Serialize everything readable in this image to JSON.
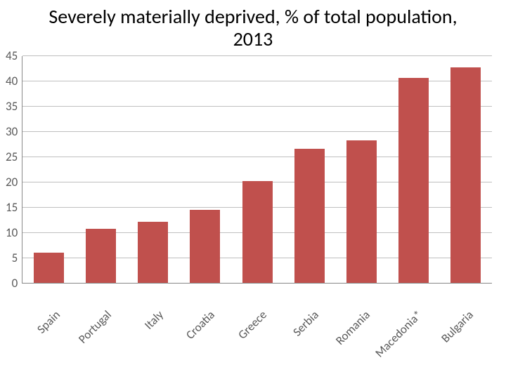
{
  "chart": {
    "type": "bar",
    "title": "Severely materially deprived, % of total population, 2013",
    "title_fontsize": 28,
    "title_color": "#000000",
    "categories": [
      "Spain",
      "Portugal",
      "Italy",
      "Croatia",
      "Greece",
      "Serbia",
      "Romania",
      "Macedonia*",
      "Bulgaria"
    ],
    "values": [
      6.0,
      10.8,
      12.2,
      14.5,
      20.2,
      26.7,
      28.3,
      40.8,
      42.8
    ],
    "bar_color": "#c0504d",
    "ylim": [
      0,
      45
    ],
    "ytick_step": 5,
    "yticks": [
      0,
      5,
      10,
      15,
      20,
      25,
      30,
      35,
      40,
      45
    ],
    "axis_label_fontsize": 17,
    "axis_label_color": "#595959",
    "grid_color": "#bfbfbf",
    "background_color": "#ffffff",
    "bar_width": 0.58,
    "x_label_rotation": -45
  }
}
